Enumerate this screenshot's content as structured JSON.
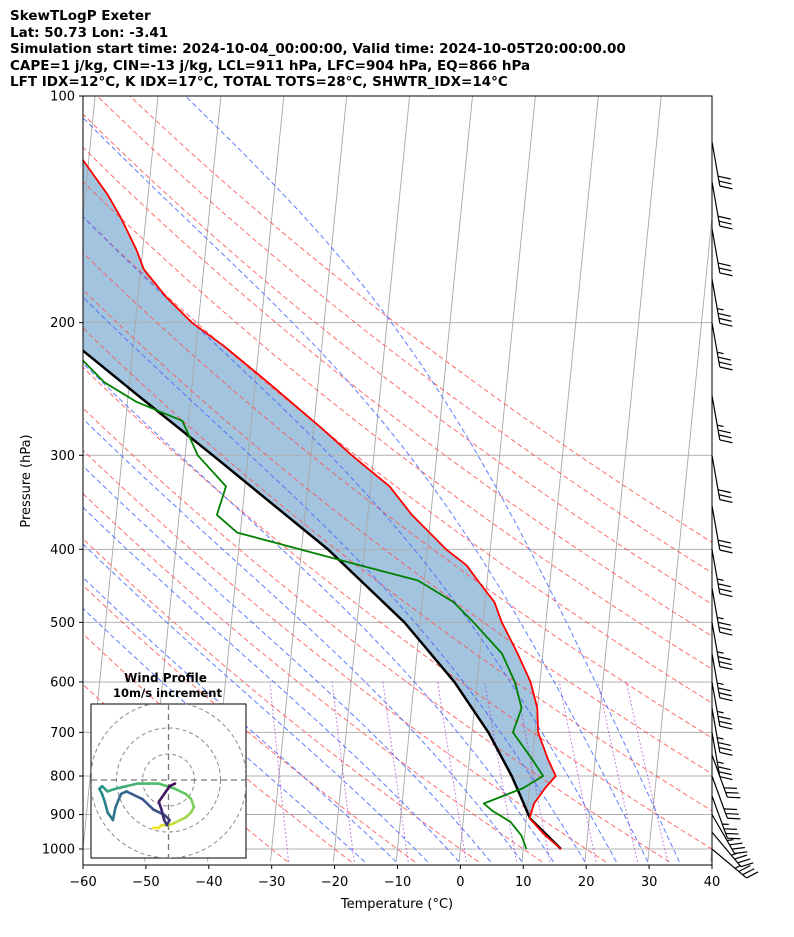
{
  "header": {
    "line1": "SkewTLogP Exeter",
    "line2": "Lat: 50.73   Lon: -3.41",
    "line3": "Simulation start time: 2024-10-04_00:00:00, Valid time: 2024-10-05T20:00:00.00",
    "line4": "CAPE=1 j/kg, CIN=-13 j/kg, LCL=911 hPa, LFC=904 hPa, EQ=866 hPa",
    "line5": "LFT IDX=12°C, K IDX=17°C, TOTAL TOTS=28°C, SHWTR_IDX=14°C"
  },
  "chart_data": {
    "type": "line",
    "xlabel": "Temperature (°C)",
    "ylabel": "Pressure (hPa)",
    "xlim": [
      -60,
      40
    ],
    "ylim": [
      1040,
      100
    ],
    "x_ticks": [
      -60,
      -50,
      -40,
      -30,
      -20,
      -10,
      0,
      10,
      20,
      30,
      40
    ],
    "x_tick_labels": [
      "−60",
      "−50",
      "−40",
      "−30",
      "−20",
      "−10",
      "0",
      "10",
      "20",
      "30",
      "40"
    ],
    "y_ticks": [
      1000,
      900,
      800,
      700,
      600,
      500,
      400,
      300,
      200,
      100
    ],
    "y_tick_labels": [
      "1000",
      "900",
      "800",
      "700",
      "600",
      "500",
      "400",
      "300",
      "200",
      "100"
    ],
    "skew_per_decade": 75,
    "series": [
      {
        "name": "Temperature",
        "color": "#ff0000",
        "p": [
          1000,
          955,
          910,
          870,
          830,
          800,
          760,
          700,
          650,
          600,
          550,
          500,
          470,
          440,
          420,
          400,
          360,
          330,
          300,
          275,
          240,
          215,
          200,
          185,
          170,
          160,
          145,
          135,
          120,
          110,
          100
        ],
        "t": [
          16,
          13,
          10.5,
          11,
          12.5,
          14,
          12.5,
          10.5,
          10,
          8.5,
          6,
          3,
          1.5,
          -1.5,
          -3.5,
          -7,
          -13,
          -17,
          -23.5,
          -29,
          -38,
          -45.5,
          -51,
          -55.5,
          -59.5,
          -61,
          -64,
          -66.5,
          -71.5,
          -75.5,
          -80
        ]
      },
      {
        "name": "Dewpoint",
        "color": "#008000",
        "p": [
          1000,
          960,
          920,
          890,
          870,
          830,
          800,
          760,
          700,
          650,
          600,
          550,
          500,
          470,
          440,
          420,
          380,
          360,
          330,
          300,
          270,
          255,
          240,
          210,
          170,
          145,
          130,
          115,
          100
        ],
        "t": [
          10.5,
          9.5,
          7.5,
          4.5,
          3,
          9,
          12,
          10,
          6.5,
          7.5,
          6,
          3.5,
          -1.5,
          -5,
          -11,
          -20.5,
          -40.5,
          -44,
          -43,
          -48,
          -51,
          -58.5,
          -64,
          -71.5,
          -79.5,
          -86,
          -87.5,
          -86.5,
          -84
        ]
      },
      {
        "name": "Parcel profile",
        "color": "#000000",
        "p": [
          1000,
          911,
          850,
          800,
          700,
          600,
          500,
          400,
          300,
          250,
          200,
          150,
          100
        ],
        "t": [
          16,
          10.6,
          8.7,
          7.0,
          2.6,
          -3.6,
          -12.5,
          -25.8,
          -45.6,
          -58.4,
          -73.8,
          -93,
          -118
        ]
      }
    ],
    "dry_adiabats_theta_c": [
      -30,
      -20,
      -10,
      0,
      10,
      20,
      30,
      40,
      50,
      60,
      70,
      80,
      90,
      100,
      110,
      120,
      130
    ],
    "moist_adiabats_start_c": [
      -15,
      -10,
      -5,
      0,
      5,
      10,
      15,
      20,
      25,
      30,
      35
    ],
    "mixing_ratio_lines_gkg": [
      0.4,
      1,
      2,
      4,
      7,
      10,
      16,
      24,
      32
    ],
    "wind_barbs": [
      {
        "p": 1000,
        "speed_kt": 35,
        "dir_deg": 200
      },
      {
        "p": 950,
        "speed_kt": 35,
        "dir_deg": 210
      },
      {
        "p": 900,
        "speed_kt": 35,
        "dir_deg": 220
      },
      {
        "p": 850,
        "speed_kt": 35,
        "dir_deg": 230
      },
      {
        "p": 800,
        "speed_kt": 30,
        "dir_deg": 230
      },
      {
        "p": 750,
        "speed_kt": 30,
        "dir_deg": 230
      },
      {
        "p": 700,
        "speed_kt": 35,
        "dir_deg": 240
      },
      {
        "p": 650,
        "speed_kt": 35,
        "dir_deg": 240
      },
      {
        "p": 600,
        "speed_kt": 35,
        "dir_deg": 240
      },
      {
        "p": 550,
        "speed_kt": 35,
        "dir_deg": 240
      },
      {
        "p": 500,
        "speed_kt": 35,
        "dir_deg": 240
      },
      {
        "p": 450,
        "speed_kt": 35,
        "dir_deg": 240
      },
      {
        "p": 400,
        "speed_kt": 35,
        "dir_deg": 240
      },
      {
        "p": 350,
        "speed_kt": 30,
        "dir_deg": 240
      },
      {
        "p": 300,
        "speed_kt": 30,
        "dir_deg": 240
      },
      {
        "p": 250,
        "speed_kt": 35,
        "dir_deg": 240
      },
      {
        "p": 200,
        "speed_kt": 35,
        "dir_deg": 240
      },
      {
        "p": 175,
        "speed_kt": 35,
        "dir_deg": 240
      },
      {
        "p": 150,
        "speed_kt": 30,
        "dir_deg": 240
      },
      {
        "p": 130,
        "speed_kt": 30,
        "dir_deg": 240
      },
      {
        "p": 115,
        "speed_kt": 30,
        "dir_deg": 240
      }
    ],
    "hodograph": {
      "title": "Wind Profile",
      "subtitle": "10m/s increment",
      "rings_ms": [
        10,
        20,
        30
      ],
      "u": [
        12,
        14,
        15,
        18,
        20,
        22,
        24,
        26,
        27,
        26,
        24,
        20,
        14,
        10,
        6,
        2,
        -2,
        -5,
        -6,
        -7,
        -8,
        -7,
        -6,
        -5,
        -3,
        -2,
        0,
        2,
        4,
        8,
        12,
        16,
        18,
        17,
        16,
        15,
        14,
        16,
        18,
        20
      ],
      "v": [
        7,
        7,
        8,
        8,
        9,
        10,
        11,
        13,
        15,
        18,
        20,
        22,
        24,
        24,
        24,
        23,
        22,
        21,
        22,
        23,
        22,
        20,
        17,
        13,
        10,
        15,
        20,
        21,
        20,
        18,
        14,
        12,
        10,
        8,
        10,
        14,
        17,
        20,
        23,
        24
      ],
      "colormap": [
        "#440154",
        "#3b528b",
        "#21918c",
        "#5ec962",
        "#fde725"
      ]
    }
  }
}
